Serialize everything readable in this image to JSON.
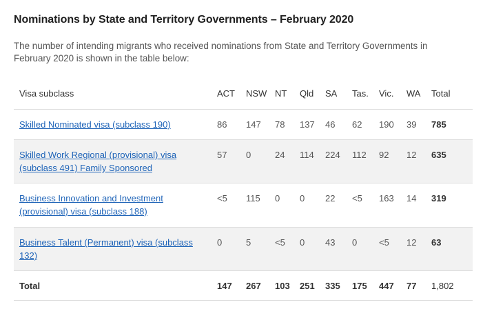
{
  "title": "Nominations by State and Territory Governments – February 2020",
  "intro": "The number of intending migrants who received nominations from State and Territory Governments in February 2020 is shown in the table below:",
  "table": {
    "headers": [
      "Visa subclass",
      "ACT",
      "NSW",
      "NT",
      "Qld",
      "SA",
      "Tas.",
      "Vic.",
      "WA",
      "Total"
    ],
    "rows": [
      {
        "visa": "Skilled Nominated visa (subclass 190)",
        "values": [
          "86",
          "147",
          "78",
          "137",
          "46",
          "62",
          "190",
          "39"
        ],
        "total": "785"
      },
      {
        "visa": "Skilled Work Regional (provisional) visa (subclass 491) Family Sponsored",
        "values": [
          "57",
          "0",
          "24",
          "114",
          "224",
          "112",
          "92",
          "12"
        ],
        "total": "635"
      },
      {
        "visa": "Business Innovation and Investment (provisional) visa (subclass 188)",
        "values": [
          "<5",
          "115",
          "0",
          "0",
          "22",
          "<5",
          "163",
          "14"
        ],
        "total": "319"
      },
      {
        "visa": "Business Talent (Permanent) visa (subclass 132)",
        "values": [
          "0",
          "5",
          "<5",
          "0",
          "43",
          "0",
          "<5",
          "12"
        ],
        "total": "63"
      }
    ],
    "total_row": {
      "label": "Total",
      "values": [
        "147",
        "267",
        "103",
        "251",
        "335",
        "175",
        "447",
        "77"
      ],
      "total": "1,802"
    }
  }
}
